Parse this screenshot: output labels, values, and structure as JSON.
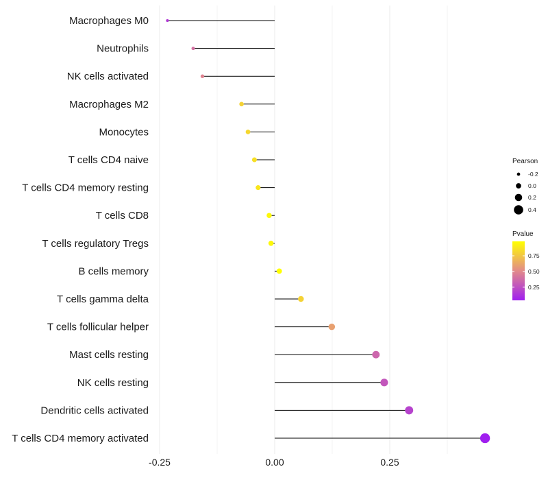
{
  "chart_data": {
    "type": "lollipop",
    "title": "",
    "xlabel": "",
    "ylabel": "",
    "xlim": [
      -0.25,
      0.46
    ],
    "xticks": [
      -0.25,
      0.0,
      0.25
    ],
    "tick_labels": [
      "-0.25",
      "0.00",
      "0.25"
    ],
    "categories": [
      "Macrophages M0",
      "Neutrophils",
      "NK cells activated",
      "Macrophages M2",
      "Monocytes",
      "T cells CD4 naive",
      "T cells CD4 memory resting",
      "T cells CD8",
      "T cells regulatory  Tregs ",
      "B cells memory",
      "T cells gamma delta",
      "T cells follicular helper",
      "Mast cells resting",
      "NK cells resting",
      "Dendritic cells activated",
      "T cells CD4 memory activated"
    ],
    "values": [
      -0.233,
      -0.177,
      -0.157,
      -0.072,
      -0.058,
      -0.044,
      -0.036,
      -0.012,
      -0.008,
      0.01,
      0.057,
      0.124,
      0.22,
      0.238,
      0.292,
      0.457
    ],
    "pvalues": [
      0.16,
      0.4,
      0.48,
      0.8,
      0.82,
      0.85,
      0.88,
      0.95,
      0.95,
      0.98,
      0.8,
      0.6,
      0.35,
      0.28,
      0.2,
      0.04
    ],
    "legend": {
      "size_title": "Pearson",
      "size_labels": [
        "-0.2",
        "0.0",
        "0.2",
        "0.4"
      ],
      "size_values": [
        -0.2,
        0.0,
        0.2,
        0.4
      ],
      "color_title": "Pvalue",
      "color_labels": [
        "0.75",
        "0.50",
        "0.25"
      ],
      "color_values": [
        0.75,
        0.5,
        0.25
      ],
      "color_range": [
        0.04,
        0.98
      ],
      "placement": "right"
    },
    "colors": {
      "low": "#a01fef",
      "mid": "#e28a8a",
      "high": "#ffff00",
      "segment": "#000000",
      "grid": "#ebebeb"
    },
    "grid": true
  }
}
